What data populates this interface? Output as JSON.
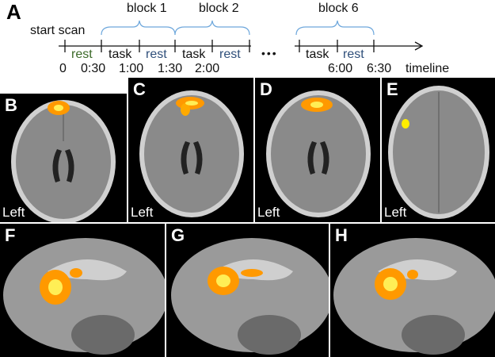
{
  "panel_a": {
    "letter": "A",
    "start": "start scan",
    "blocks": [
      "block 1",
      "block 2",
      "block 6"
    ],
    "segments": [
      {
        "label": "rest",
        "color": "#3d6b2a"
      },
      {
        "label": "task",
        "color": "#111111"
      },
      {
        "label": "rest",
        "color": "#2f4f7a"
      },
      {
        "label": "task",
        "color": "#111111"
      },
      {
        "label": "rest",
        "color": "#2f4f7a"
      },
      {
        "label": "task",
        "color": "#111111"
      },
      {
        "label": "rest",
        "color": "#2f4f7a"
      }
    ],
    "ellipsis": "•••",
    "times": [
      "0",
      "0:30",
      "1:00",
      "1:30",
      "2:00",
      "6:00",
      "6:30"
    ],
    "axis_label": "timeline",
    "bracket_color": "#6fa8dc"
  },
  "axial_panels": [
    {
      "letter": "B",
      "side": "Left"
    },
    {
      "letter": "C",
      "side": "Left"
    },
    {
      "letter": "D",
      "side": "Left"
    },
    {
      "letter": "E",
      "side": "Left"
    }
  ],
  "sagittal_panels": [
    {
      "letter": "F"
    },
    {
      "letter": "G"
    },
    {
      "letter": "H"
    }
  ],
  "colors": {
    "activation": "#ffa500",
    "activation_core": "#ffff66",
    "brain": "#8a8a8a"
  }
}
